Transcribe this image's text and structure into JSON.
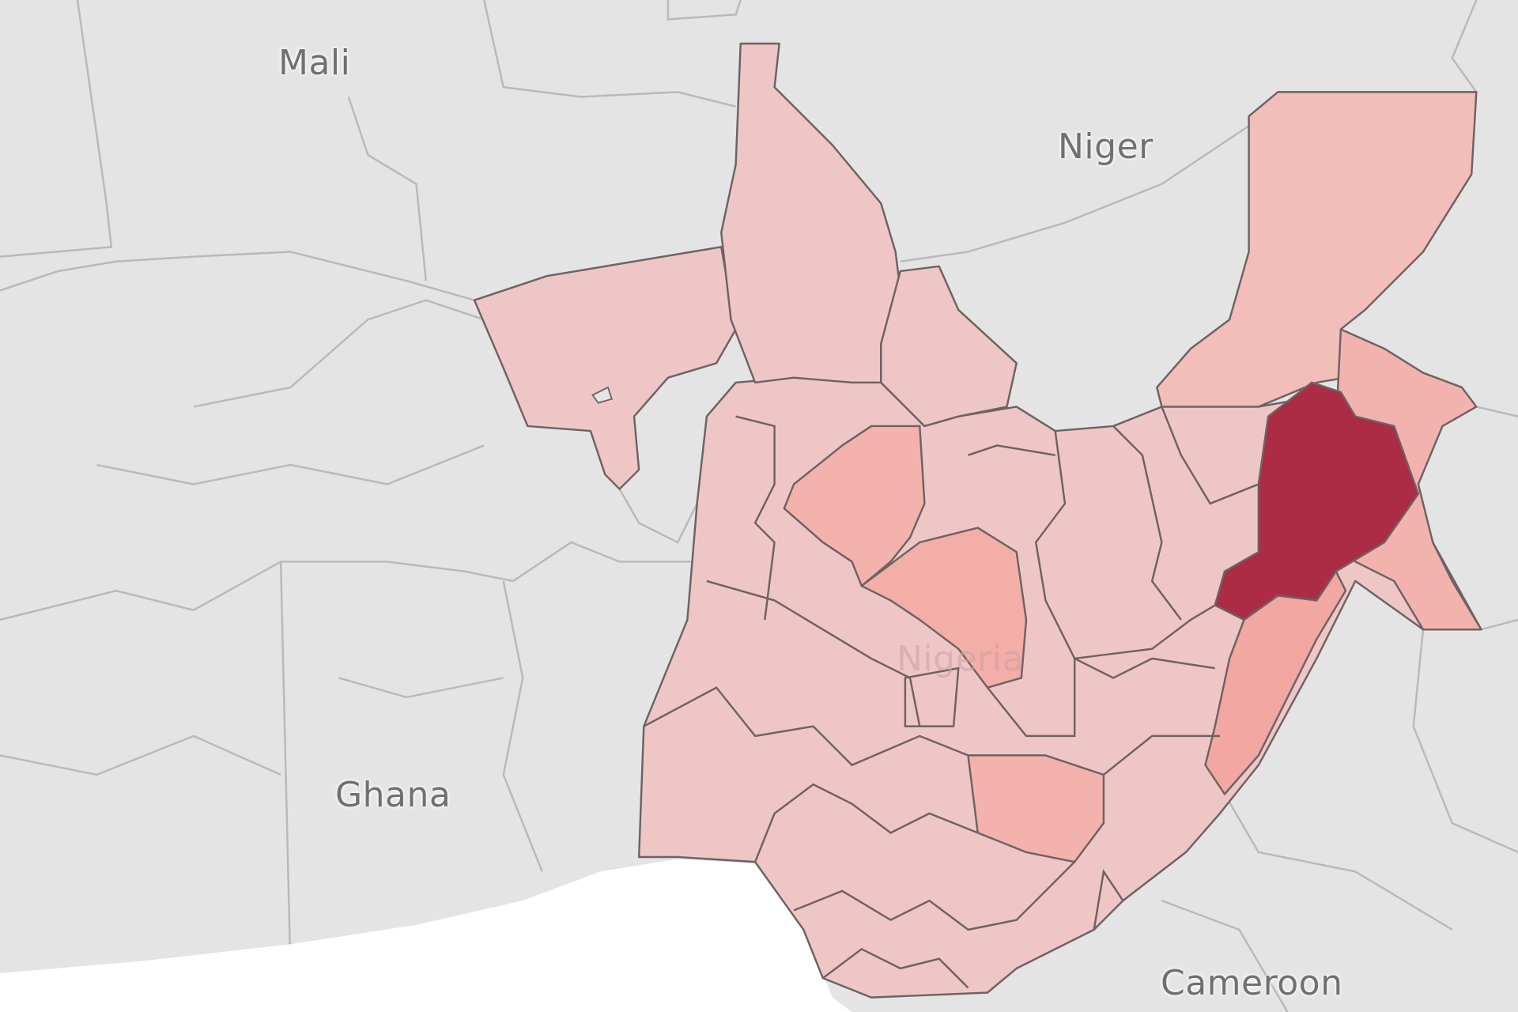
{
  "map": {
    "country_labels": [
      "Mali",
      "Niger",
      "Ghana",
      "Cameroon",
      "Nigeria"
    ],
    "colors": {
      "background_land": "#e4e4e4",
      "ocean": "#ffffff",
      "border_other": "#b8b8b8",
      "border_states": "#6e6262",
      "fill_low": "#efc6c6",
      "fill_mid": "#f4b2ad",
      "fill_high": "#f2a7a2",
      "fill_max": "#ac2b45"
    },
    "highlighted_region": "northeast Nigeria (darkest state)"
  }
}
